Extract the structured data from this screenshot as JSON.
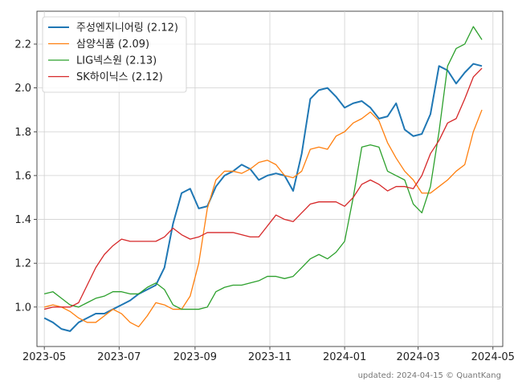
{
  "chart_data": {
    "type": "line",
    "title": "",
    "xlabel": "",
    "ylabel": "",
    "xlim": [
      "2023-04-25",
      "2024-05-09"
    ],
    "ylim": [
      0.82,
      2.35
    ],
    "x_ticks": [
      "2023-05",
      "2023-07",
      "2023-09",
      "2023-11",
      "2024-01",
      "2024-03",
      "2024-05"
    ],
    "y_ticks": [
      "1.0",
      "1.2",
      "1.4",
      "1.6",
      "1.8",
      "2.0",
      "2.2"
    ],
    "grid": true,
    "legend_position": "top-left",
    "series": [
      {
        "name": "주성엔지니어링 (2.12)",
        "color": "#1f77b4",
        "points": [
          [
            "2023-05-01",
            0.95
          ],
          [
            "2023-05-08",
            0.93
          ],
          [
            "2023-05-15",
            0.9
          ],
          [
            "2023-05-22",
            0.89
          ],
          [
            "2023-05-29",
            0.93
          ],
          [
            "2023-06-05",
            0.95
          ],
          [
            "2023-06-12",
            0.97
          ],
          [
            "2023-06-19",
            0.97
          ],
          [
            "2023-06-26",
            0.99
          ],
          [
            "2023-07-03",
            1.01
          ],
          [
            "2023-07-10",
            1.03
          ],
          [
            "2023-07-17",
            1.06
          ],
          [
            "2023-07-24",
            1.08
          ],
          [
            "2023-07-31",
            1.1
          ],
          [
            "2023-08-07",
            1.18
          ],
          [
            "2023-08-14",
            1.38
          ],
          [
            "2023-08-21",
            1.52
          ],
          [
            "2023-08-28",
            1.54
          ],
          [
            "2023-09-04",
            1.45
          ],
          [
            "2023-09-11",
            1.46
          ],
          [
            "2023-09-18",
            1.55
          ],
          [
            "2023-09-25",
            1.6
          ],
          [
            "2023-10-02",
            1.62
          ],
          [
            "2023-10-09",
            1.65
          ],
          [
            "2023-10-16",
            1.63
          ],
          [
            "2023-10-23",
            1.58
          ],
          [
            "2023-10-30",
            1.6
          ],
          [
            "2023-11-06",
            1.61
          ],
          [
            "2023-11-13",
            1.6
          ],
          [
            "2023-11-20",
            1.53
          ],
          [
            "2023-11-27",
            1.7
          ],
          [
            "2023-12-04",
            1.95
          ],
          [
            "2023-12-11",
            1.99
          ],
          [
            "2023-12-18",
            2.0
          ],
          [
            "2023-12-25",
            1.96
          ],
          [
            "2024-01-01",
            1.91
          ],
          [
            "2024-01-08",
            1.93
          ],
          [
            "2024-01-15",
            1.94
          ],
          [
            "2024-01-22",
            1.91
          ],
          [
            "2024-01-29",
            1.86
          ],
          [
            "2024-02-05",
            1.87
          ],
          [
            "2024-02-12",
            1.93
          ],
          [
            "2024-02-19",
            1.81
          ],
          [
            "2024-02-26",
            1.78
          ],
          [
            "2024-03-04",
            1.79
          ],
          [
            "2024-03-11",
            1.88
          ],
          [
            "2024-03-18",
            2.1
          ],
          [
            "2024-03-25",
            2.08
          ],
          [
            "2024-04-01",
            2.02
          ],
          [
            "2024-04-08",
            2.07
          ],
          [
            "2024-04-15",
            2.11
          ],
          [
            "2024-04-22",
            2.1
          ]
        ]
      },
      {
        "name": "삼양식품 (2.09)",
        "color": "#ff7f0e",
        "points": [
          [
            "2023-05-01",
            1.0
          ],
          [
            "2023-05-08",
            1.01
          ],
          [
            "2023-05-15",
            1.0
          ],
          [
            "2023-05-22",
            0.98
          ],
          [
            "2023-05-29",
            0.95
          ],
          [
            "2023-06-05",
            0.93
          ],
          [
            "2023-06-12",
            0.93
          ],
          [
            "2023-06-19",
            0.96
          ],
          [
            "2023-06-26",
            0.99
          ],
          [
            "2023-07-03",
            0.97
          ],
          [
            "2023-07-10",
            0.93
          ],
          [
            "2023-07-17",
            0.91
          ],
          [
            "2023-07-24",
            0.96
          ],
          [
            "2023-07-31",
            1.02
          ],
          [
            "2023-08-07",
            1.01
          ],
          [
            "2023-08-14",
            0.99
          ],
          [
            "2023-08-21",
            0.99
          ],
          [
            "2023-08-28",
            1.05
          ],
          [
            "2023-09-04",
            1.2
          ],
          [
            "2023-09-11",
            1.45
          ],
          [
            "2023-09-18",
            1.58
          ],
          [
            "2023-09-25",
            1.62
          ],
          [
            "2023-10-02",
            1.62
          ],
          [
            "2023-10-09",
            1.61
          ],
          [
            "2023-10-16",
            1.63
          ],
          [
            "2023-10-23",
            1.66
          ],
          [
            "2023-10-30",
            1.67
          ],
          [
            "2023-11-06",
            1.65
          ],
          [
            "2023-11-13",
            1.6
          ],
          [
            "2023-11-20",
            1.59
          ],
          [
            "2023-11-27",
            1.62
          ],
          [
            "2023-12-04",
            1.72
          ],
          [
            "2023-12-11",
            1.73
          ],
          [
            "2023-12-18",
            1.72
          ],
          [
            "2023-12-25",
            1.78
          ],
          [
            "2024-01-01",
            1.8
          ],
          [
            "2024-01-08",
            1.84
          ],
          [
            "2024-01-15",
            1.86
          ],
          [
            "2024-01-22",
            1.89
          ],
          [
            "2024-01-29",
            1.85
          ],
          [
            "2024-02-05",
            1.75
          ],
          [
            "2024-02-12",
            1.68
          ],
          [
            "2024-02-19",
            1.62
          ],
          [
            "2024-02-26",
            1.58
          ],
          [
            "2024-03-04",
            1.52
          ],
          [
            "2024-03-11",
            1.52
          ],
          [
            "2024-03-18",
            1.55
          ],
          [
            "2024-03-25",
            1.58
          ],
          [
            "2024-04-01",
            1.62
          ],
          [
            "2024-04-08",
            1.65
          ],
          [
            "2024-04-15",
            1.8
          ],
          [
            "2024-04-22",
            1.9
          ]
        ]
      },
      {
        "name": "LIG넥스원 (2.13)",
        "color": "#2ca02c",
        "points": [
          [
            "2023-05-01",
            1.06
          ],
          [
            "2023-05-08",
            1.07
          ],
          [
            "2023-05-15",
            1.04
          ],
          [
            "2023-05-22",
            1.01
          ],
          [
            "2023-05-29",
            1.0
          ],
          [
            "2023-06-05",
            1.02
          ],
          [
            "2023-06-12",
            1.04
          ],
          [
            "2023-06-19",
            1.05
          ],
          [
            "2023-06-26",
            1.07
          ],
          [
            "2023-07-03",
            1.07
          ],
          [
            "2023-07-10",
            1.06
          ],
          [
            "2023-07-17",
            1.06
          ],
          [
            "2023-07-24",
            1.09
          ],
          [
            "2023-07-31",
            1.11
          ],
          [
            "2023-08-07",
            1.08
          ],
          [
            "2023-08-14",
            1.01
          ],
          [
            "2023-08-21",
            0.99
          ],
          [
            "2023-08-28",
            0.99
          ],
          [
            "2023-09-04",
            0.99
          ],
          [
            "2023-09-11",
            1.0
          ],
          [
            "2023-09-18",
            1.07
          ],
          [
            "2023-09-25",
            1.09
          ],
          [
            "2023-10-02",
            1.1
          ],
          [
            "2023-10-09",
            1.1
          ],
          [
            "2023-10-16",
            1.11
          ],
          [
            "2023-10-23",
            1.12
          ],
          [
            "2023-10-30",
            1.14
          ],
          [
            "2023-11-06",
            1.14
          ],
          [
            "2023-11-13",
            1.13
          ],
          [
            "2023-11-20",
            1.14
          ],
          [
            "2023-11-27",
            1.18
          ],
          [
            "2023-12-04",
            1.22
          ],
          [
            "2023-12-11",
            1.24
          ],
          [
            "2023-12-18",
            1.22
          ],
          [
            "2023-12-25",
            1.25
          ],
          [
            "2024-01-01",
            1.3
          ],
          [
            "2024-01-08",
            1.5
          ],
          [
            "2024-01-15",
            1.73
          ],
          [
            "2024-01-22",
            1.74
          ],
          [
            "2024-01-29",
            1.73
          ],
          [
            "2024-02-05",
            1.62
          ],
          [
            "2024-02-12",
            1.6
          ],
          [
            "2024-02-19",
            1.58
          ],
          [
            "2024-02-26",
            1.47
          ],
          [
            "2024-03-04",
            1.43
          ],
          [
            "2024-03-11",
            1.55
          ],
          [
            "2024-03-18",
            1.8
          ],
          [
            "2024-03-25",
            2.1
          ],
          [
            "2024-04-01",
            2.18
          ],
          [
            "2024-04-08",
            2.2
          ],
          [
            "2024-04-15",
            2.28
          ],
          [
            "2024-04-22",
            2.22
          ]
        ]
      },
      {
        "name": "SK하이닉스 (2.12)",
        "color": "#d62728",
        "points": [
          [
            "2023-05-01",
            0.99
          ],
          [
            "2023-05-08",
            1.0
          ],
          [
            "2023-05-15",
            1.0
          ],
          [
            "2023-05-22",
            1.0
          ],
          [
            "2023-05-29",
            1.02
          ],
          [
            "2023-06-05",
            1.1
          ],
          [
            "2023-06-12",
            1.18
          ],
          [
            "2023-06-19",
            1.24
          ],
          [
            "2023-06-26",
            1.28
          ],
          [
            "2023-07-03",
            1.31
          ],
          [
            "2023-07-10",
            1.3
          ],
          [
            "2023-07-17",
            1.3
          ],
          [
            "2023-07-24",
            1.3
          ],
          [
            "2023-07-31",
            1.3
          ],
          [
            "2023-08-07",
            1.32
          ],
          [
            "2023-08-14",
            1.36
          ],
          [
            "2023-08-21",
            1.33
          ],
          [
            "2023-08-28",
            1.31
          ],
          [
            "2023-09-04",
            1.32
          ],
          [
            "2023-09-11",
            1.34
          ],
          [
            "2023-09-18",
            1.34
          ],
          [
            "2023-09-25",
            1.34
          ],
          [
            "2023-10-02",
            1.34
          ],
          [
            "2023-10-09",
            1.33
          ],
          [
            "2023-10-16",
            1.32
          ],
          [
            "2023-10-23",
            1.32
          ],
          [
            "2023-10-30",
            1.37
          ],
          [
            "2023-11-06",
            1.42
          ],
          [
            "2023-11-13",
            1.4
          ],
          [
            "2023-11-20",
            1.39
          ],
          [
            "2023-11-27",
            1.43
          ],
          [
            "2023-12-04",
            1.47
          ],
          [
            "2023-12-11",
            1.48
          ],
          [
            "2023-12-18",
            1.48
          ],
          [
            "2023-12-25",
            1.48
          ],
          [
            "2024-01-01",
            1.46
          ],
          [
            "2024-01-08",
            1.5
          ],
          [
            "2024-01-15",
            1.56
          ],
          [
            "2024-01-22",
            1.58
          ],
          [
            "2024-01-29",
            1.56
          ],
          [
            "2024-02-05",
            1.53
          ],
          [
            "2024-02-12",
            1.55
          ],
          [
            "2024-02-19",
            1.55
          ],
          [
            "2024-02-26",
            1.54
          ],
          [
            "2024-03-04",
            1.6
          ],
          [
            "2024-03-11",
            1.7
          ],
          [
            "2024-03-18",
            1.76
          ],
          [
            "2024-03-25",
            1.84
          ],
          [
            "2024-04-01",
            1.86
          ],
          [
            "2024-04-08",
            1.95
          ],
          [
            "2024-04-15",
            2.05
          ],
          [
            "2024-04-22",
            2.09
          ]
        ]
      }
    ]
  },
  "footer": {
    "text": "updated: 2024-04-15 © QuantKang"
  }
}
